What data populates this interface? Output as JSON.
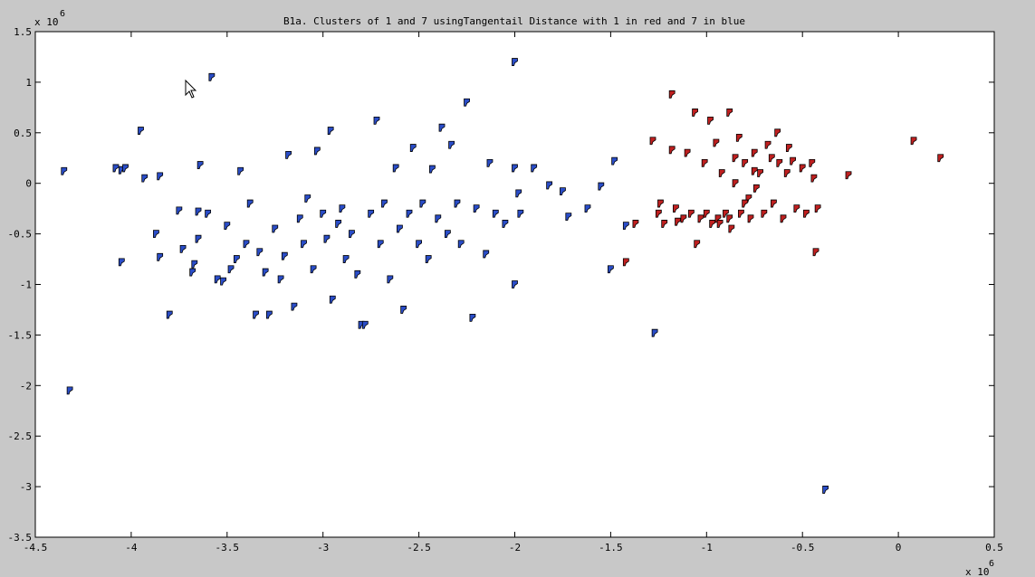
{
  "chart_data": {
    "type": "scatter",
    "title": "B1a. Clusters of 1 and 7 usingTangentail Distance with 1 in red and 7 in blue",
    "x_exponent": {
      "base": "x 10",
      "power": "6"
    },
    "y_exponent": {
      "base": "x 10",
      "power": "6"
    },
    "xlim": [
      -4.5,
      0.5
    ],
    "xticks": [
      -4.5,
      -4,
      -3.5,
      -3,
      -2.5,
      -2,
      -1.5,
      -1,
      -0.5,
      0,
      0.5
    ],
    "ylim": [
      -3.5,
      1.5
    ],
    "yticks": [
      -3.5,
      -3,
      -2.5,
      -2,
      -1.5,
      -1,
      -0.5,
      0,
      0.5,
      1,
      1.5
    ],
    "series": [
      {
        "color": "#2a4dc8",
        "x": [
          -4.35,
          -4.32,
          -4.08,
          -4.05,
          -4.03,
          -4.05,
          -3.95,
          -3.93,
          -3.85,
          -3.87,
          -3.85,
          -3.8,
          -3.75,
          -3.73,
          -3.68,
          -3.67,
          -3.65,
          -3.65,
          -3.64,
          -3.6,
          -3.58,
          -3.55,
          -3.52,
          -3.5,
          -3.48,
          -3.45,
          -3.43,
          -3.4,
          -3.38,
          -3.35,
          -3.33,
          -3.3,
          -3.28,
          -3.25,
          -3.22,
          -3.2,
          -3.18,
          -3.15,
          -3.12,
          -3.1,
          -3.08,
          -3.05,
          -3.03,
          -3.0,
          -2.98,
          -2.96,
          -2.95,
          -2.92,
          -2.9,
          -2.88,
          -2.85,
          -2.82,
          -2.8,
          -2.78,
          -2.75,
          -2.72,
          -2.7,
          -2.68,
          -2.65,
          -2.62,
          -2.6,
          -2.58,
          -2.55,
          -2.53,
          -2.5,
          -2.48,
          -2.45,
          -2.43,
          -2.4,
          -2.38,
          -2.35,
          -2.33,
          -2.3,
          -2.28,
          -2.25,
          -2.22,
          -2.2,
          -2.15,
          -2.13,
          -2.1,
          -2.05,
          -2.0,
          -2.0,
          -2.0,
          -1.98,
          -1.97,
          -1.9,
          -1.82,
          -1.75,
          -1.72,
          -1.62,
          -1.55,
          -1.5,
          -1.48,
          -1.42,
          -1.27,
          -0.38
        ],
        "values": [
          0.12,
          -2.05,
          0.15,
          0.13,
          0.15,
          -0.78,
          0.52,
          0.05,
          0.07,
          -0.5,
          -0.73,
          -1.3,
          -0.27,
          -0.65,
          -0.88,
          -0.8,
          -0.55,
          -0.28,
          0.18,
          -0.3,
          1.05,
          -0.95,
          -0.97,
          -0.42,
          -0.85,
          -0.75,
          0.12,
          -0.6,
          -0.2,
          -1.3,
          -0.68,
          -0.88,
          -1.3,
          -0.45,
          -0.95,
          -0.72,
          0.28,
          -1.22,
          -0.35,
          -0.6,
          -0.15,
          -0.85,
          0.32,
          -0.3,
          -0.55,
          0.52,
          -1.15,
          -0.4,
          -0.25,
          -0.75,
          -0.5,
          -0.9,
          -1.4,
          -1.4,
          -0.3,
          0.62,
          -0.6,
          -0.2,
          -0.95,
          0.15,
          -0.45,
          -1.25,
          -0.3,
          0.35,
          -0.6,
          -0.2,
          -0.75,
          0.14,
          -0.35,
          0.55,
          -0.5,
          0.38,
          -0.2,
          -0.6,
          0.8,
          -1.33,
          -0.25,
          -0.7,
          0.2,
          -0.3,
          -0.4,
          1.2,
          0.15,
          -1.0,
          -0.1,
          -0.3,
          0.15,
          -0.02,
          -0.08,
          -0.33,
          -0.25,
          -0.03,
          -0.85,
          0.22,
          -0.42,
          -1.48,
          -3.03
        ]
      },
      {
        "color": "#c02020",
        "x": [
          -1.37,
          -1.42,
          -1.28,
          -1.25,
          -1.24,
          -1.22,
          -1.18,
          -1.18,
          -1.16,
          -1.15,
          -1.12,
          -1.1,
          -1.08,
          -1.06,
          -1.05,
          -1.03,
          -1.01,
          -1.0,
          -0.98,
          -0.97,
          -0.95,
          -0.94,
          -0.92,
          -0.9,
          -0.88,
          -0.87,
          -0.85,
          -0.83,
          -0.82,
          -0.8,
          -0.78,
          -0.77,
          -0.75,
          -0.74,
          -0.72,
          -0.7,
          -0.68,
          -0.66,
          -0.65,
          -0.63,
          -0.62,
          -0.6,
          -0.58,
          -0.57,
          -0.55,
          -0.53,
          -0.5,
          -0.48,
          -0.45,
          -0.44,
          -0.43,
          -0.42,
          -0.26,
          0.08,
          0.22,
          -0.93,
          -0.88,
          -0.8,
          -0.85,
          -0.75
        ],
        "values": [
          -0.4,
          -0.78,
          0.42,
          -0.3,
          -0.2,
          -0.4,
          0.88,
          0.33,
          -0.25,
          -0.38,
          -0.35,
          0.3,
          -0.3,
          0.7,
          -0.6,
          -0.35,
          0.2,
          -0.3,
          0.62,
          -0.4,
          0.4,
          -0.35,
          0.1,
          -0.3,
          0.7,
          -0.45,
          0.0,
          0.45,
          -0.3,
          0.2,
          -0.15,
          -0.35,
          0.3,
          -0.05,
          0.1,
          -0.3,
          0.38,
          0.25,
          -0.2,
          0.5,
          0.2,
          -0.35,
          0.1,
          0.35,
          0.22,
          -0.25,
          0.15,
          -0.3,
          0.2,
          0.05,
          -0.68,
          -0.25,
          0.08,
          0.42,
          0.25,
          -0.4,
          -0.35,
          -0.2,
          0.25,
          0.12
        ]
      }
    ]
  }
}
